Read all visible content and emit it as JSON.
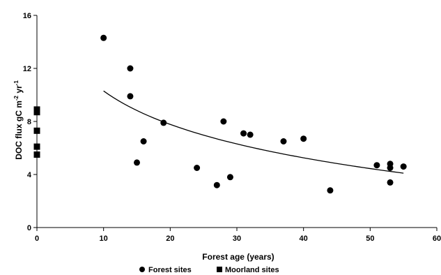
{
  "chart_data": {
    "type": "scatter",
    "xlabel": "Forest age (years)",
    "ylabel": "DOC flux gC m",
    "ylabel_exp1": "-2",
    "ylabel_mid": " yr",
    "ylabel_exp2": "-1",
    "xlim": [
      0,
      60
    ],
    "ylim": [
      0,
      16
    ],
    "x_ticks": [
      "0",
      "10",
      "20",
      "30",
      "40",
      "50",
      "60"
    ],
    "y_ticks": [
      "0",
      "4",
      "8",
      "12",
      "16"
    ],
    "grid": false,
    "legend_position": "bottom",
    "series": [
      {
        "name": "Forest sites",
        "marker": "circle",
        "color": "#000000",
        "points": [
          {
            "x": 10,
            "y": 14.3
          },
          {
            "x": 14,
            "y": 12.0
          },
          {
            "x": 14,
            "y": 9.9
          },
          {
            "x": 15,
            "y": 4.9
          },
          {
            "x": 16,
            "y": 6.5
          },
          {
            "x": 19,
            "y": 7.9
          },
          {
            "x": 24,
            "y": 4.5
          },
          {
            "x": 27,
            "y": 3.2
          },
          {
            "x": 28,
            "y": 8.0
          },
          {
            "x": 29,
            "y": 3.8
          },
          {
            "x": 31,
            "y": 7.1
          },
          {
            "x": 32,
            "y": 7.0
          },
          {
            "x": 37,
            "y": 6.5
          },
          {
            "x": 40,
            "y": 6.7
          },
          {
            "x": 44,
            "y": 2.8
          },
          {
            "x": 51,
            "y": 4.7
          },
          {
            "x": 53,
            "y": 4.8
          },
          {
            "x": 53,
            "y": 4.5
          },
          {
            "x": 53,
            "y": 3.4
          },
          {
            "x": 55,
            "y": 4.6
          }
        ]
      },
      {
        "name": "Moorland sites",
        "marker": "square",
        "color": "#000000",
        "points": [
          {
            "x": 0,
            "y": 8.9
          },
          {
            "x": 0,
            "y": 8.7
          },
          {
            "x": 0,
            "y": 7.3
          },
          {
            "x": 0,
            "y": 6.1
          },
          {
            "x": 0,
            "y": 5.5
          }
        ]
      }
    ],
    "trendline": {
      "type": "logarithmic",
      "x_range": [
        10,
        55
      ],
      "points": [
        {
          "x": 10,
          "y": 10.3
        },
        {
          "x": 20,
          "y": 6.9
        },
        {
          "x": 30,
          "y": 5.6
        },
        {
          "x": 40,
          "y": 4.9
        },
        {
          "x": 55,
          "y": 4.1
        }
      ]
    }
  }
}
